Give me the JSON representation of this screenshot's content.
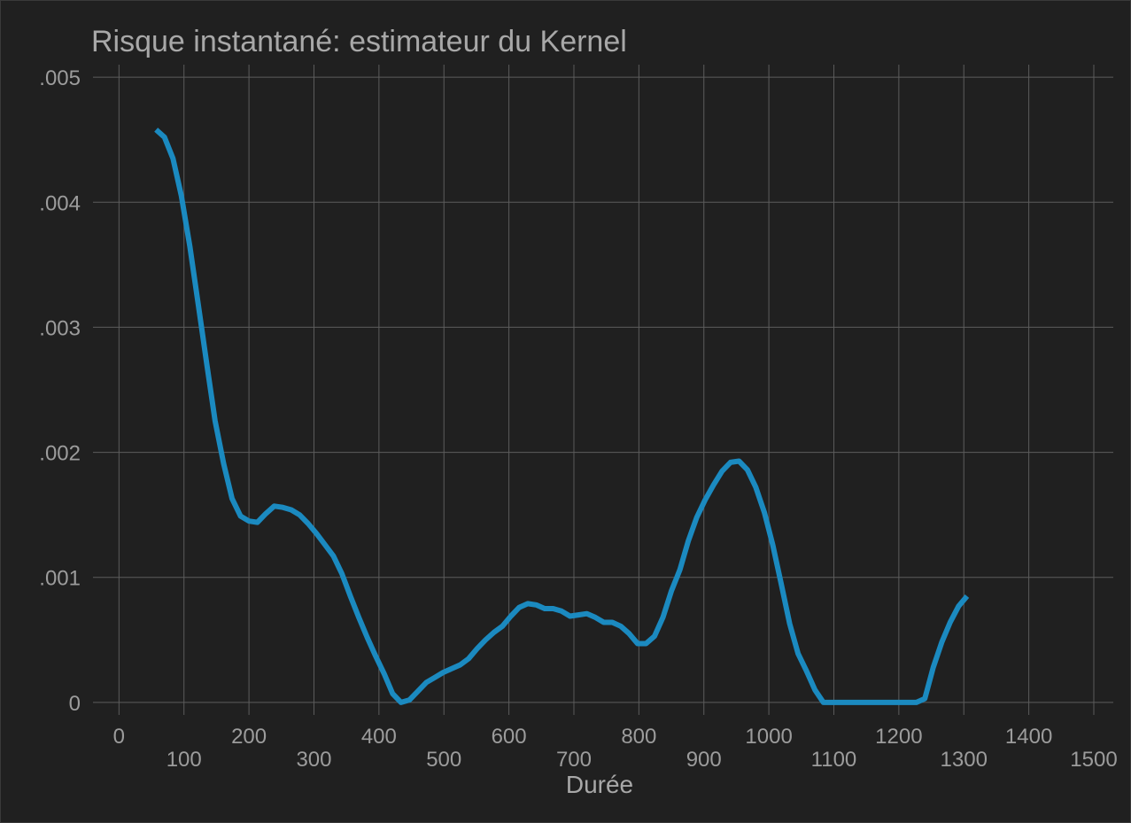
{
  "chart_data": {
    "type": "line",
    "title": "Risque instantané: estimateur du Kernel",
    "xlabel": "Durée",
    "ylabel": "",
    "xlim": [
      -40,
      1530
    ],
    "ylim": [
      -0.0001,
      0.0051
    ],
    "x_ticks": [
      0,
      100,
      200,
      300,
      400,
      500,
      600,
      700,
      800,
      900,
      1000,
      1100,
      1200,
      1300,
      1400,
      1500
    ],
    "y_ticks": [
      0,
      0.001,
      0.002,
      0.003,
      0.004,
      0.005
    ],
    "y_tick_labels": [
      "0",
      ".001",
      ".002",
      ".003",
      ".004",
      ".005"
    ],
    "grid": true,
    "colors": {
      "background": "#202020",
      "line": "#1b8ac0",
      "grid": "#5c5c5c",
      "text": "#9c9c9c"
    },
    "series": [
      {
        "x": [
          57,
          70,
          83,
          96,
          109,
          122,
          135,
          148,
          161,
          174,
          187,
          200,
          213,
          226,
          239,
          252,
          265,
          278,
          291,
          304,
          317,
          330,
          343,
          356,
          369,
          382,
          395,
          408,
          421,
          434,
          447,
          460,
          473,
          486,
          499,
          512,
          525,
          538,
          551,
          564,
          577,
          590,
          603,
          616,
          629,
          642,
          655,
          668,
          681,
          694,
          707,
          720,
          733,
          746,
          759,
          772,
          785,
          798,
          811,
          824,
          837,
          850,
          863,
          876,
          889,
          902,
          915,
          928,
          941,
          954,
          967,
          980,
          993,
          1006,
          1019,
          1032,
          1045,
          1058,
          1071,
          1084,
          1097,
          1110,
          1123,
          1136,
          1149,
          1162,
          1175,
          1188,
          1201,
          1214,
          1227,
          1240,
          1253,
          1266,
          1279,
          1292,
          1305
        ],
        "values": [
          0.00458,
          0.00452,
          0.00435,
          0.00405,
          0.00365,
          0.00318,
          0.00271,
          0.00225,
          0.00191,
          0.00163,
          0.00149,
          0.00145,
          0.00144,
          0.00151,
          0.00157,
          0.00156,
          0.00154,
          0.0015,
          0.00143,
          0.00135,
          0.00126,
          0.00117,
          0.00103,
          0.00085,
          0.00068,
          0.00052,
          0.00037,
          0.00023,
          7e-05,
          0.0,
          2e-05,
          9e-05,
          0.00016,
          0.0002,
          0.00024,
          0.00027,
          0.0003,
          0.00035,
          0.00043,
          0.0005,
          0.00056,
          0.00061,
          0.00069,
          0.00076,
          0.00079,
          0.00078,
          0.00075,
          0.00075,
          0.00073,
          0.00069,
          0.0007,
          0.00071,
          0.00068,
          0.00064,
          0.00064,
          0.00061,
          0.00055,
          0.00047,
          0.00047,
          0.00053,
          0.00068,
          0.00089,
          0.00106,
          0.00129,
          0.00148,
          0.00162,
          0.00174,
          0.00185,
          0.00192,
          0.00193,
          0.00186,
          0.00172,
          0.00152,
          0.00126,
          0.00095,
          0.00063,
          0.00039,
          0.00025,
          0.0001,
          0.0,
          0.0,
          0.0,
          0.0,
          0.0,
          0.0,
          0.0,
          0.0,
          0.0,
          0.0,
          0.0,
          0.0,
          3e-05,
          0.00028,
          0.00048,
          0.00064,
          0.00077,
          0.00085
        ]
      }
    ]
  }
}
